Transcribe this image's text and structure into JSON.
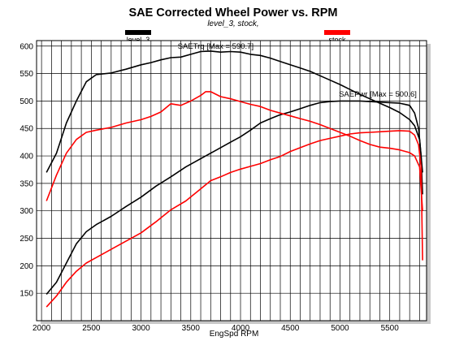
{
  "chart_data": {
    "type": "line",
    "title": "SAE Corrected Wheel Power vs. RPM",
    "subtitle": "level_3, stock,",
    "xlabel": "EngSpd RPM",
    "ylabel": "",
    "xlim": [
      1950,
      5870
    ],
    "ylim": [
      100,
      610
    ],
    "xticks": [
      2000,
      2500,
      3000,
      3500,
      4000,
      4500,
      5000,
      5500
    ],
    "yticks": [
      150,
      200,
      250,
      300,
      350,
      400,
      450,
      500,
      550,
      600
    ],
    "grid": true,
    "legend": [
      {
        "name": "level_3",
        "color": "#000000"
      },
      {
        "name": "stock",
        "color": "#ff0000"
      }
    ],
    "annotations": [
      {
        "text": "SAETrq [Max = 590.7]",
        "x": 3750,
        "y": 595
      },
      {
        "text": "SAEPwr [Max = 500.6]",
        "x": 5380,
        "y": 508
      }
    ],
    "series": [
      {
        "key": "level3_trq",
        "legend_index": 0,
        "color": "#000000",
        "x": [
          2050,
          2150,
          2250,
          2350,
          2450,
          2550,
          2700,
          2850,
          3000,
          3100,
          3200,
          3300,
          3400,
          3500,
          3600,
          3700,
          3800,
          3900,
          4000,
          4100,
          4200,
          4300,
          4400,
          4500,
          4600,
          4700,
          4800,
          4900,
          5000,
          5100,
          5200,
          5300,
          5400,
          5500,
          5600,
          5700,
          5750,
          5800,
          5830
        ],
        "y": [
          370,
          405,
          460,
          500,
          535,
          548,
          551,
          558,
          566,
          570,
          575,
          579,
          580,
          585,
          590,
          591,
          589,
          590,
          589,
          585,
          583,
          578,
          572,
          566,
          560,
          554,
          546,
          538,
          530,
          521,
          512,
          504,
          496,
          488,
          479,
          466,
          455,
          430,
          370
        ]
      },
      {
        "key": "level3_pwr",
        "legend_index": 0,
        "color": "#000000",
        "x": [
          2050,
          2150,
          2250,
          2350,
          2450,
          2550,
          2700,
          2850,
          3000,
          3150,
          3300,
          3450,
          3600,
          3750,
          3900,
          4000,
          4100,
          4200,
          4300,
          4400,
          4500,
          4600,
          4700,
          4800,
          4900,
          5000,
          5100,
          5200,
          5300,
          5400,
          5500,
          5600,
          5700,
          5750,
          5790,
          5815,
          5830
        ],
        "y": [
          148,
          170,
          205,
          240,
          262,
          275,
          290,
          308,
          325,
          345,
          362,
          380,
          395,
          410,
          425,
          435,
          447,
          460,
          468,
          475,
          480,
          486,
          492,
          497,
          499,
          500,
          500,
          500,
          499,
          498,
          497,
          496,
          492,
          478,
          450,
          400,
          330
        ]
      },
      {
        "key": "stock_trq",
        "legend_index": 1,
        "color": "#ff0000",
        "x": [
          2050,
          2150,
          2250,
          2350,
          2450,
          2550,
          2700,
          2850,
          3000,
          3100,
          3200,
          3300,
          3400,
          3500,
          3600,
          3650,
          3700,
          3800,
          3900,
          4000,
          4100,
          4200,
          4300,
          4400,
          4500,
          4600,
          4700,
          4800,
          4900,
          5000,
          5100,
          5200,
          5300,
          5400,
          5500,
          5600,
          5700,
          5750,
          5800,
          5830
        ],
        "y": [
          318,
          365,
          405,
          430,
          443,
          447,
          452,
          460,
          466,
          472,
          480,
          495,
          492,
          500,
          510,
          517,
          517,
          508,
          504,
          499,
          494,
          490,
          483,
          478,
          473,
          468,
          463,
          457,
          450,
          443,
          436,
          428,
          421,
          416,
          414,
          411,
          406,
          400,
          380,
          300
        ]
      },
      {
        "key": "stock_pwr",
        "legend_index": 1,
        "color": "#ff0000",
        "x": [
          2050,
          2150,
          2250,
          2350,
          2450,
          2550,
          2700,
          2850,
          3000,
          3150,
          3300,
          3450,
          3600,
          3700,
          3800,
          3900,
          4000,
          4100,
          4200,
          4300,
          4400,
          4500,
          4600,
          4700,
          4800,
          4900,
          5000,
          5100,
          5200,
          5300,
          5400,
          5500,
          5600,
          5700,
          5750,
          5790,
          5815,
          5830
        ],
        "y": [
          125,
          145,
          170,
          190,
          205,
          215,
          230,
          245,
          260,
          280,
          302,
          318,
          340,
          355,
          362,
          370,
          376,
          381,
          386,
          393,
          399,
          408,
          415,
          422,
          428,
          432,
          436,
          440,
          442,
          443,
          444,
          445,
          446,
          445,
          438,
          420,
          380,
          210
        ]
      }
    ]
  }
}
